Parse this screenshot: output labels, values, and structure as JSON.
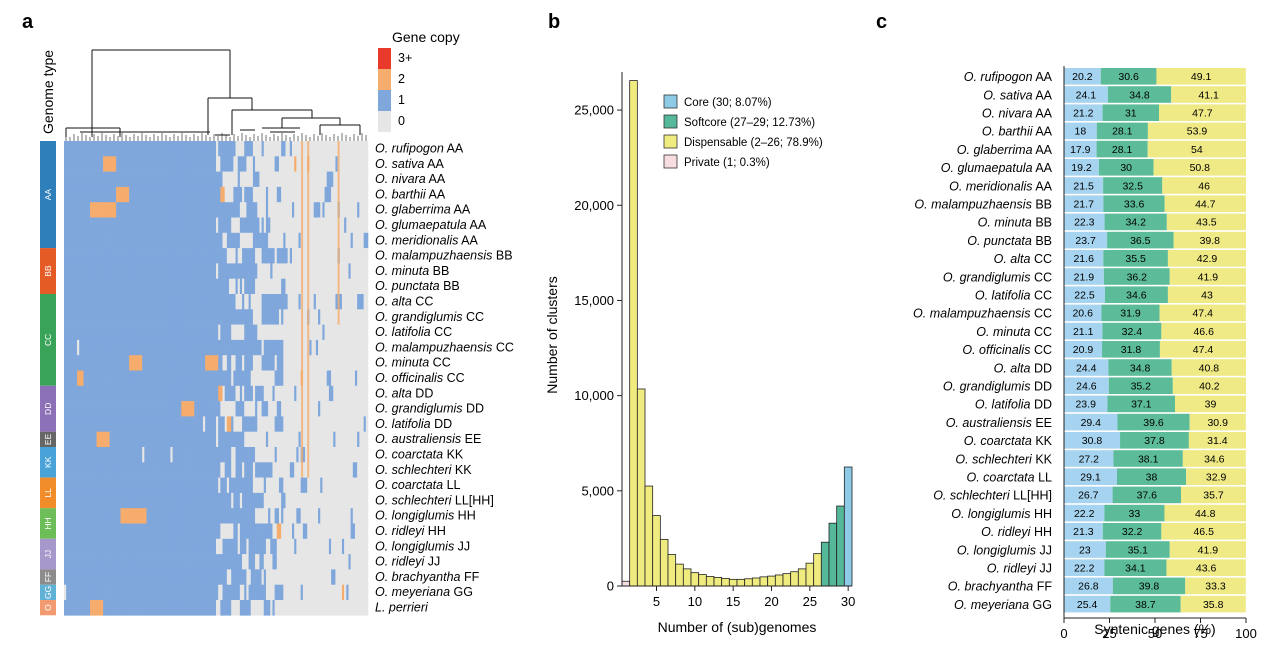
{
  "panels": {
    "a": "a",
    "b": "b",
    "c": "c"
  },
  "heatmap": {
    "genome_type_title": "Genome type",
    "legend_title": "Gene copy",
    "legend": [
      {
        "label": "3+",
        "color": "#e8392b"
      },
      {
        "label": "2",
        "color": "#f5ac6c"
      },
      {
        "label": "1",
        "color": "#7fa7dc"
      },
      {
        "label": "0",
        "color": "#e6e6e6"
      }
    ],
    "genome_types": [
      {
        "label": "AA",
        "rows": 7,
        "color": "#2e7fba"
      },
      {
        "label": "BB",
        "rows": 3,
        "color": "#e45b26"
      },
      {
        "label": "CC",
        "rows": 6,
        "color": "#3aa35a"
      },
      {
        "label": "DD",
        "rows": 3,
        "color": "#8d71b8"
      },
      {
        "label": "EE",
        "rows": 1,
        "color": "#666666"
      },
      {
        "label": "KK",
        "rows": 2,
        "color": "#4aa3d8"
      },
      {
        "label": "LL",
        "rows": 2,
        "color": "#f08c2a"
      },
      {
        "label": "HH",
        "rows": 2,
        "color": "#6dbd58"
      },
      {
        "label": "JJ",
        "rows": 2,
        "color": "#a798cc"
      },
      {
        "label": "FF",
        "rows": 1,
        "color": "#8c8c8c"
      },
      {
        "label": "GG",
        "rows": 1,
        "color": "#5fb1d6"
      },
      {
        "label": "O",
        "rows": 1,
        "color": "#f29b71"
      }
    ],
    "rows": [
      {
        "species": "O. rufipogon",
        "suffix": " AA"
      },
      {
        "species": "O. sativa",
        "suffix": " AA"
      },
      {
        "species": "O. nivara",
        "suffix": " AA"
      },
      {
        "species": "O. barthii",
        "suffix": " AA"
      },
      {
        "species": "O. glaberrima",
        "suffix": " AA"
      },
      {
        "species": "O. glumaepatula",
        "suffix": " AA"
      },
      {
        "species": "O. meridionalis",
        "suffix": " AA"
      },
      {
        "species": "O. malampuzhaensis",
        "suffix": " BB"
      },
      {
        "species": "O. minuta",
        "suffix": " BB"
      },
      {
        "species": "O. punctata",
        "suffix": " BB"
      },
      {
        "species": "O. alta",
        "suffix": " CC"
      },
      {
        "species": "O. grandiglumis",
        "suffix": " CC"
      },
      {
        "species": "O. latifolia",
        "suffix": " CC"
      },
      {
        "species": "O. malampuzhaensis",
        "suffix": " CC"
      },
      {
        "species": "O. minuta",
        "suffix": " CC"
      },
      {
        "species": "O. officinalis",
        "suffix": " CC"
      },
      {
        "species": "O. alta",
        "suffix": " DD"
      },
      {
        "species": "O. grandiglumis",
        "suffix": " DD"
      },
      {
        "species": "O. latifolia",
        "suffix": " DD"
      },
      {
        "species": "O. australiensis",
        "suffix": " EE"
      },
      {
        "species": "O. coarctata",
        "suffix": " KK"
      },
      {
        "species": "O. schlechteri",
        "suffix": " KK"
      },
      {
        "species": "O. coarctata",
        "suffix": " LL"
      },
      {
        "species": "O. schlechteri",
        "suffix": " LL[HH]"
      },
      {
        "species": "O. longiglumis",
        "suffix": " HH"
      },
      {
        "species": "O. ridleyi",
        "suffix": " HH"
      },
      {
        "species": "O. longiglumis",
        "suffix": " JJ"
      },
      {
        "species": "O. ridleyi",
        "suffix": " JJ"
      },
      {
        "species": "O. brachyantha",
        "suffix": " FF"
      },
      {
        "species": "O. meyeriana",
        "suffix": " GG"
      },
      {
        "species": "L. perrieri",
        "suffix": ""
      }
    ]
  },
  "chart_data": [
    {
      "type": "bar",
      "panel": "b",
      "xlabel": "Number of (sub)genomes",
      "ylabel": "Number of clusters",
      "x": [
        1,
        2,
        3,
        4,
        5,
        6,
        7,
        8,
        9,
        10,
        11,
        12,
        13,
        14,
        15,
        16,
        17,
        18,
        19,
        20,
        21,
        22,
        23,
        24,
        25,
        26,
        27,
        28,
        29,
        30
      ],
      "values": [
        250,
        26550,
        10350,
        5250,
        3700,
        2450,
        1650,
        1150,
        900,
        700,
        600,
        500,
        450,
        400,
        350,
        350,
        380,
        420,
        480,
        520,
        580,
        650,
        750,
        900,
        1200,
        1700,
        2300,
        3300,
        4200,
        6250
      ],
      "categories_by_x": [
        "Private",
        "Dispensable",
        "Dispensable",
        "Dispensable",
        "Dispensable",
        "Dispensable",
        "Dispensable",
        "Dispensable",
        "Dispensable",
        "Dispensable",
        "Dispensable",
        "Dispensable",
        "Dispensable",
        "Dispensable",
        "Dispensable",
        "Dispensable",
        "Dispensable",
        "Dispensable",
        "Dispensable",
        "Dispensable",
        "Dispensable",
        "Dispensable",
        "Dispensable",
        "Dispensable",
        "Dispensable",
        "Dispensable",
        "Softcore",
        "Softcore",
        "Softcore",
        "Core"
      ],
      "xticks": [
        5,
        10,
        15,
        20,
        25,
        30
      ],
      "xtick_labels": [
        "5",
        "10",
        "15",
        "20",
        "25",
        "30"
      ],
      "yticks": [
        0,
        5000,
        10000,
        15000,
        20000,
        25000
      ],
      "ytick_labels": [
        "0",
        "5,000",
        "10,000",
        "15,000",
        "20,000",
        "25,000"
      ],
      "xlim": [
        0.5,
        30.5
      ],
      "ylim": [
        0,
        27000
      ],
      "legend": [
        {
          "name": "Core (30; 8.07%)",
          "color": "#8ecbe6"
        },
        {
          "name": "Softcore (27–29; 12.73%)",
          "color": "#55b89a"
        },
        {
          "name": "Dispensable (2–26; 78.9%)",
          "color": "#f0eb7f"
        },
        {
          "name": "Private (1; 0.3%)",
          "color": "#f7dde0"
        }
      ],
      "legend_position": "top-center"
    },
    {
      "type": "bar",
      "panel": "c",
      "orientation": "horizontal",
      "stacked": true,
      "xlabel": "Syntenic genes (%)",
      "xticks": [
        0,
        25,
        50,
        75,
        100
      ],
      "xtick_labels": [
        "0",
        "25",
        "50",
        "75",
        "100"
      ],
      "xlim": [
        0,
        100
      ],
      "colors": {
        "core": "#a6d3ef",
        "softcore": "#5cbc9a",
        "dispensable": "#efe986"
      },
      "rows": [
        {
          "species": "O. rufipogon",
          "suffix": " AA",
          "values": [
            20.2,
            30.6,
            49.1
          ],
          "labels": [
            "20.2",
            "30.6",
            "49.1"
          ]
        },
        {
          "species": "O. sativa",
          "suffix": " AA",
          "values": [
            24.1,
            34.8,
            41.1
          ],
          "labels": [
            "24.1",
            "34.8",
            "41.1"
          ]
        },
        {
          "species": "O. nivara",
          "suffix": " AA",
          "values": [
            21.2,
            31,
            47.7
          ],
          "labels": [
            "21.2",
            "31",
            "47.7"
          ]
        },
        {
          "species": "O. barthii",
          "suffix": " AA",
          "values": [
            18,
            28.1,
            53.9
          ],
          "labels": [
            "18",
            "28.1",
            "53.9"
          ]
        },
        {
          "species": "O. glaberrima",
          "suffix": " AA",
          "values": [
            17.9,
            28.1,
            54
          ],
          "labels": [
            "17.9",
            "28.1",
            "54"
          ]
        },
        {
          "species": "O. glumaepatula",
          "suffix": " AA",
          "values": [
            19.2,
            30,
            50.8
          ],
          "labels": [
            "19.2",
            "30",
            "50.8"
          ]
        },
        {
          "species": "O. meridionalis",
          "suffix": " AA",
          "values": [
            21.5,
            32.5,
            46
          ],
          "labels": [
            "21.5",
            "32.5",
            "46"
          ]
        },
        {
          "species": "O. malampuzhaensis",
          "suffix": " BB",
          "values": [
            21.7,
            33.6,
            44.7
          ],
          "labels": [
            "21.7",
            "33.6",
            "44.7"
          ]
        },
        {
          "species": "O. minuta",
          "suffix": " BB",
          "values": [
            22.3,
            34.2,
            43.5
          ],
          "labels": [
            "22.3",
            "34.2",
            "43.5"
          ]
        },
        {
          "species": "O. punctata",
          "suffix": " BB",
          "values": [
            23.7,
            36.5,
            39.8
          ],
          "labels": [
            "23.7",
            "36.5",
            "39.8"
          ]
        },
        {
          "species": "O. alta",
          "suffix": " CC",
          "values": [
            21.6,
            35.5,
            42.9
          ],
          "labels": [
            "21.6",
            "35.5",
            "42.9"
          ]
        },
        {
          "species": "O. grandiglumis",
          "suffix": " CC",
          "values": [
            21.9,
            36.2,
            41.9
          ],
          "labels": [
            "21.9",
            "36.2",
            "41.9"
          ]
        },
        {
          "species": "O. latifolia",
          "suffix": " CC",
          "values": [
            22.5,
            34.6,
            43
          ],
          "labels": [
            "22.5",
            "34.6",
            "43"
          ]
        },
        {
          "species": "O. malampuzhaensis",
          "suffix": " CC",
          "values": [
            20.6,
            31.9,
            47.4
          ],
          "labels": [
            "20.6",
            "31.9",
            "47.4"
          ]
        },
        {
          "species": "O. minuta",
          "suffix": " CC",
          "values": [
            21.1,
            32.4,
            46.6
          ],
          "labels": [
            "21.1",
            "32.4",
            "46.6"
          ]
        },
        {
          "species": "O. officinalis",
          "suffix": " CC",
          "values": [
            20.9,
            31.8,
            47.4
          ],
          "labels": [
            "20.9",
            "31.8",
            "47.4"
          ]
        },
        {
          "species": "O. alta",
          "suffix": " DD",
          "values": [
            24.4,
            34.8,
            40.8
          ],
          "labels": [
            "24.4",
            "34.8",
            "40.8"
          ]
        },
        {
          "species": "O. grandiglumis",
          "suffix": " DD",
          "values": [
            24.6,
            35.2,
            40.2
          ],
          "labels": [
            "24.6",
            "35.2",
            "40.2"
          ]
        },
        {
          "species": "O. latifolia",
          "suffix": " DD",
          "values": [
            23.9,
            37.1,
            39
          ],
          "labels": [
            "23.9",
            "37.1",
            "39"
          ]
        },
        {
          "species": "O. australiensis",
          "suffix": " EE",
          "values": [
            29.4,
            39.6,
            30.9
          ],
          "labels": [
            "29.4",
            "39.6",
            "30.9"
          ]
        },
        {
          "species": "O. coarctata",
          "suffix": " KK",
          "values": [
            30.8,
            37.8,
            31.4
          ],
          "labels": [
            "30.8",
            "37.8",
            "31.4"
          ]
        },
        {
          "species": "O. schlechteri",
          "suffix": " KK",
          "values": [
            27.2,
            38.1,
            34.6
          ],
          "labels": [
            "27.2",
            "38.1",
            "34.6"
          ]
        },
        {
          "species": "O. coarctata",
          "suffix": " LL",
          "values": [
            29.1,
            38,
            32.9
          ],
          "labels": [
            "29.1",
            "38",
            "32.9"
          ]
        },
        {
          "species": "O. schlechteri",
          "suffix": " LL[HH]",
          "values": [
            26.7,
            37.6,
            35.7
          ],
          "labels": [
            "26.7",
            "37.6",
            "35.7"
          ]
        },
        {
          "species": "O. longiglumis",
          "suffix": " HH",
          "values": [
            22.2,
            33,
            44.8
          ],
          "labels": [
            "22.2",
            "33",
            "44.8"
          ]
        },
        {
          "species": "O. ridleyi",
          "suffix": " HH",
          "values": [
            21.3,
            32.2,
            46.5
          ],
          "labels": [
            "21.3",
            "32.2",
            "46.5"
          ]
        },
        {
          "species": "O. longiglumis",
          "suffix": " JJ",
          "values": [
            23,
            35.1,
            41.9
          ],
          "labels": [
            "23",
            "35.1",
            "41.9"
          ]
        },
        {
          "species": "O. ridleyi",
          "suffix": " JJ",
          "values": [
            22.2,
            34.1,
            43.6
          ],
          "labels": [
            "22.2",
            "34.1",
            "43.6"
          ]
        },
        {
          "species": "O. brachyantha",
          "suffix": " FF",
          "values": [
            26.8,
            39.8,
            33.3
          ],
          "labels": [
            "26.8",
            "39.8",
            "33.3"
          ]
        },
        {
          "species": "O. meyeriana",
          "suffix": " GG",
          "values": [
            25.4,
            38.7,
            35.8
          ],
          "labels": [
            "25.4",
            "38.7",
            "35.8"
          ]
        }
      ]
    }
  ]
}
